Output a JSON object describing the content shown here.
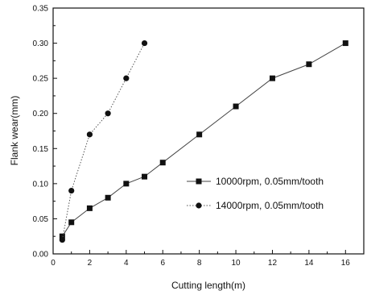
{
  "chart_data": {
    "type": "line",
    "xlabel": "Cutting length(m)",
    "ylabel": "Flank wear(mm)",
    "xlim": [
      0,
      17
    ],
    "ylim": [
      0,
      0.35
    ],
    "xticks": [
      0,
      2,
      4,
      6,
      8,
      10,
      12,
      14,
      16
    ],
    "yticks": [
      0.0,
      0.05,
      0.1,
      0.15,
      0.2,
      0.25,
      0.3,
      0.35
    ],
    "ytick_labels": [
      "0.00",
      "0.05",
      "0.10",
      "0.15",
      "0.20",
      "0.25",
      "0.30",
      "0.35"
    ],
    "legend_position": "center-right",
    "grid": false,
    "series": [
      {
        "name": "10000rpm, 0.05mm/tooth",
        "marker": "square",
        "line_style": "solid",
        "color": "#111111",
        "x": [
          0.5,
          1,
          2,
          3,
          4,
          5,
          6,
          8,
          10,
          12,
          14,
          16
        ],
        "y": [
          0.025,
          0.045,
          0.065,
          0.08,
          0.1,
          0.11,
          0.13,
          0.17,
          0.21,
          0.25,
          0.27,
          0.3
        ]
      },
      {
        "name": "14000rpm, 0.05mm/tooth",
        "marker": "circle",
        "line_style": "dotted",
        "color": "#111111",
        "x": [
          0.5,
          1,
          2,
          3,
          4,
          5
        ],
        "y": [
          0.02,
          0.09,
          0.17,
          0.2,
          0.25,
          0.3
        ]
      }
    ]
  }
}
